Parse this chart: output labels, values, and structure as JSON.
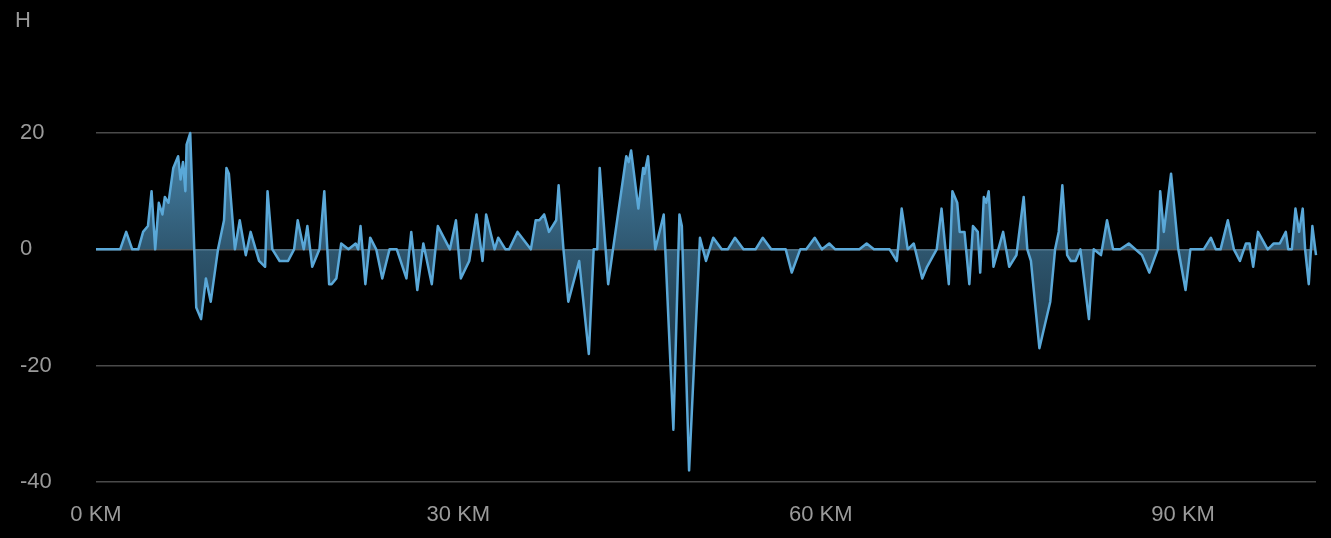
{
  "chart_data": {
    "type": "area",
    "ylabel": "H",
    "color": "#5aa8d8",
    "marker": "none",
    "grid": "y",
    "legend": false,
    "xlim": [
      0,
      101
    ],
    "xticks": [
      {
        "value": 0,
        "label": "0 KM"
      },
      {
        "value": 30,
        "label": "30 KM"
      },
      {
        "value": 60,
        "label": "60 KM"
      },
      {
        "value": 90,
        "label": "90 KM"
      }
    ],
    "ylim": [
      -40,
      20
    ],
    "yticks": [
      -40,
      -20,
      0,
      20
    ],
    "x": [
      0,
      2.0,
      2.5,
      3.0,
      3.5,
      3.9,
      4.3,
      4.6,
      4.9,
      5.2,
      5.5,
      5.7,
      6.0,
      6.4,
      6.8,
      7.0,
      7.2,
      7.4,
      7.5,
      7.8,
      8.3,
      8.7,
      9.1,
      9.5,
      10.1,
      10.6,
      10.8,
      11.0,
      11.5,
      11.9,
      12.4,
      12.8,
      13.5,
      14.0,
      14.2,
      14.6,
      15.2,
      15.9,
      16.4,
      16.7,
      17.2,
      17.5,
      17.9,
      18.5,
      18.9,
      19.3,
      19.5,
      19.9,
      20.3,
      20.9,
      21.5,
      21.7,
      21.9,
      22.3,
      22.7,
      23.2,
      23.7,
      24.3,
      24.9,
      25.7,
      26.1,
      26.6,
      27.1,
      27.8,
      28.3,
      29.3,
      29.8,
      30.2,
      30.9,
      31.5,
      32.0,
      32.3,
      33.0,
      33.3,
      33.9,
      34.2,
      34.9,
      36.0,
      36.4,
      36.7,
      37.1,
      37.5,
      38.1,
      38.3,
      38.7,
      39.1,
      40.0,
      40.8,
      41.2,
      41.5,
      41.7,
      42.4,
      42.8,
      43.9,
      44.1,
      44.3,
      44.9,
      45.3,
      45.4,
      45.7,
      46.3,
      47.0,
      47.8,
      48.3,
      48.5,
      49.1,
      50.0,
      50.5,
      51.1,
      51.8,
      52.3,
      52.9,
      53.6,
      54.6,
      55.2,
      55.9,
      57.1,
      57.6,
      58.3,
      58.8,
      59.5,
      60.1,
      60.7,
      61.2,
      63.2,
      63.8,
      64.4,
      65.7,
      66.3,
      66.7,
      67.2,
      67.7,
      68.4,
      68.8,
      69.6,
      70.0,
      70.6,
      70.9,
      71.3,
      71.5,
      71.9,
      72.3,
      72.6,
      73.0,
      73.2,
      73.5,
      73.7,
      73.9,
      74.3,
      75.1,
      75.6,
      76.2,
      76.8,
      77.1,
      77.4,
      78.1,
      79.0,
      79.4,
      79.7,
      80.0,
      80.4,
      80.7,
      81.1,
      81.5,
      82.2,
      82.6,
      83.2,
      83.7,
      84.2,
      84.8,
      85.5,
      86.6,
      87.2,
      87.9,
      88.1,
      88.4,
      89.0,
      89.6,
      90.2,
      90.6,
      91.2,
      91.7,
      92.3,
      92.7,
      93.1,
      93.7,
      94.2,
      94.7,
      95.2,
      95.5,
      95.8,
      96.2,
      97.0,
      97.5,
      98.0,
      98.5,
      98.7,
      99.0,
      99.3,
      99.6,
      99.9,
      100.1,
      100.4,
      100.7,
      101.0
    ],
    "values": [
      0,
      0,
      3,
      0,
      0,
      3,
      4,
      10,
      0,
      8,
      6,
      9,
      8,
      14,
      16,
      12,
      15,
      10,
      18,
      20,
      -10,
      -12,
      -5,
      -9,
      0,
      5,
      14,
      13,
      0,
      5,
      -1,
      3,
      -2,
      -3,
      10,
      0,
      -2,
      -2,
      0,
      5,
      0,
      4,
      -3,
      0,
      10,
      -6,
      -6,
      -5,
      1,
      0,
      1,
      0,
      4,
      -6,
      2,
      0,
      -5,
      0,
      0,
      -5,
      3,
      -7,
      1,
      -6,
      4,
      0,
      5,
      -5,
      -2,
      6,
      -2,
      6,
      0,
      2,
      0,
      0,
      3,
      0,
      5,
      5,
      6,
      3,
      5,
      11,
      0,
      -9,
      -2,
      -18,
      0,
      0,
      14,
      -6,
      0,
      16,
      15,
      17,
      7,
      14,
      13,
      16,
      0,
      6,
      -31,
      6,
      4,
      -38,
      2,
      -2,
      2,
      0,
      0,
      2,
      0,
      0,
      2,
      0,
      0,
      -4,
      0,
      0,
      2,
      0,
      1,
      0,
      0,
      1,
      0,
      0,
      -2,
      7,
      0,
      1,
      -5,
      -3,
      0,
      7,
      -6,
      10,
      8,
      3,
      3,
      -6,
      4,
      3,
      -4,
      9,
      8,
      10,
      -3,
      3,
      -3,
      -1,
      9,
      0,
      -2,
      -17,
      -9,
      0,
      3,
      11,
      -1,
      -2,
      -2,
      0,
      -12,
      0,
      -1,
      5,
      0,
      0,
      1,
      -1,
      -4,
      0,
      10,
      3,
      13,
      0,
      -7,
      0,
      0,
      0,
      2,
      0,
      0,
      5,
      0,
      -2,
      1,
      1,
      -3,
      3,
      0,
      1,
      1,
      3,
      0,
      0,
      7,
      3,
      7,
      0,
      -6,
      4,
      -1
    ]
  }
}
